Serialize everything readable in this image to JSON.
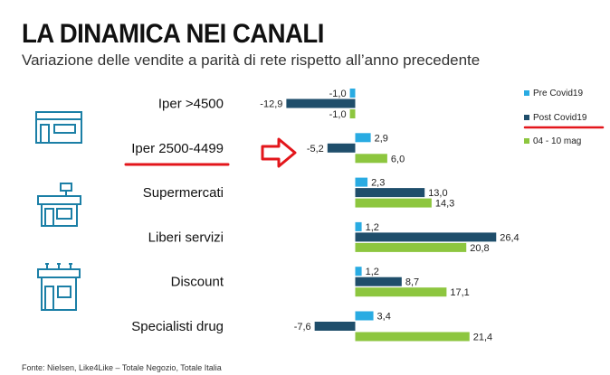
{
  "page": {
    "title": "LA DINAMICA NEI CANALI",
    "subtitle": "Variazione delle vendite a parità di rete rispetto all’anno precedente",
    "source": "Fonte: Nielsen, Like4Like – Totale Negozio, Totale Italia"
  },
  "colors": {
    "pre": "#29abe2",
    "post": "#1f4e6b",
    "may": "#8dc63f",
    "highlight": "#e3161b",
    "icon": "#1b7fa6"
  },
  "icons": [
    "hypermarket-icon",
    "supermarket-icon",
    "discount-store-icon"
  ],
  "chart_data": {
    "type": "bar",
    "orientation": "horizontal",
    "title": "LA DINAMICA NEI CANALI",
    "subtitle": "Variazione delle vendite a parità di rete rispetto all’anno precedente",
    "categories": [
      "Iper >4500",
      "Iper 2500-4499",
      "Supermercati",
      "Liberi servizi",
      "Discount",
      "Specialisti drug"
    ],
    "series": [
      {
        "name": "Pre Covid19",
        "values": [
          -1.0,
          2.9,
          2.3,
          1.2,
          1.2,
          3.4
        ],
        "labels": [
          "-1,0",
          "2,9",
          "2,3",
          "1,2",
          "1,2",
          "3,4"
        ]
      },
      {
        "name": "Post Covid19",
        "values": [
          -12.9,
          -5.2,
          13.0,
          26.4,
          8.7,
          -7.6
        ],
        "labels": [
          "-12,9",
          "-5,2",
          "13,0",
          "26,4",
          "8,7",
          "-7,6"
        ]
      },
      {
        "name": "04 - 10 mag",
        "values": [
          -1.0,
          6.0,
          14.3,
          20.8,
          17.1,
          21.4
        ],
        "labels": [
          "-1,0",
          "6,0",
          "14,3",
          "20,8",
          "17,1",
          "21,4"
        ]
      }
    ],
    "xlim": [
      -13,
      27
    ],
    "grid": false,
    "legend": "right",
    "highlighted_category": "Iper 2500-4499",
    "highlighted_legend": "Post Covid19"
  }
}
